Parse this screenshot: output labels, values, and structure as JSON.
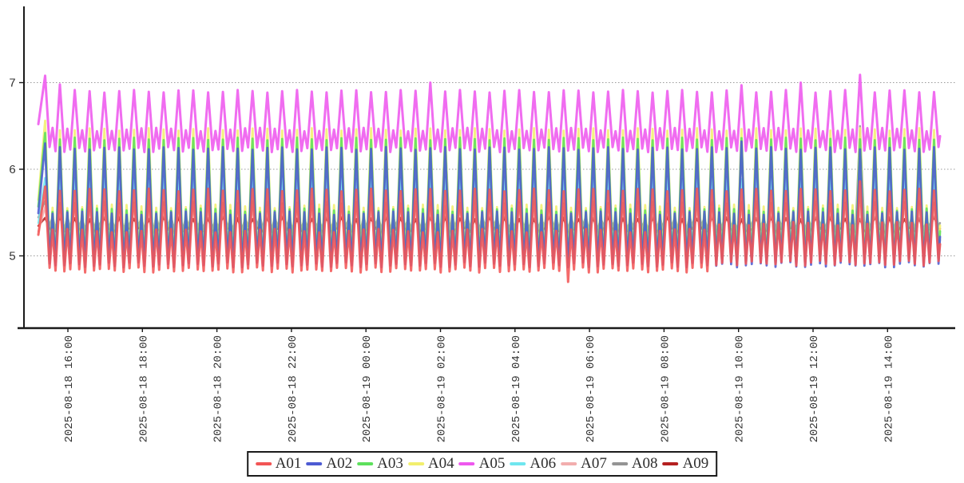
{
  "chart_data": {
    "type": "line",
    "title": "",
    "x_axis": {
      "tick_labels": [
        "2025-08-18 16:00",
        "2025-08-18 18:00",
        "2025-08-18 20:00",
        "2025-08-18 22:00",
        "2025-08-19 00:00",
        "2025-08-19 02:00",
        "2025-08-19 04:00",
        "2025-08-19 06:00",
        "2025-08-19 08:00",
        "2025-08-19 10:00",
        "2025-08-19 12:00",
        "2025-08-19 14:00"
      ],
      "label_rotation_deg": 90,
      "tick_interval_hours": 2
    },
    "y_axis": {
      "tick_labels": [
        "5",
        "6",
        "7"
      ],
      "tick_values": [
        5,
        6,
        7
      ],
      "range_shown": [
        4.2,
        7.85
      ]
    },
    "grid": {
      "horizontal": true,
      "vertical": false,
      "style": "dotted",
      "color": "#999999"
    },
    "legend": {
      "position": "bottom-center",
      "border_color": "#1a1a1a"
    },
    "series": [
      {
        "name": "A09",
        "color": "#b42020",
        "low": 5.27,
        "high": 5.44,
        "bump": 0.5,
        "width": 2.4
      },
      {
        "name": "A08",
        "color": "#949494",
        "low": 5.3,
        "high": 5.62,
        "bump": 0.45,
        "width": 2.4
      },
      {
        "name": "A07",
        "color": "#f2aeae",
        "low": 5.04,
        "high": 5.58,
        "bump": 0.4,
        "width": 2.4
      },
      {
        "name": "A06",
        "color": "#6fe6ef",
        "low": 4.95,
        "high": 5.9,
        "bump": 0.45,
        "width": 2.4
      },
      {
        "name": "A04",
        "color": "#f2ef6e",
        "low": 4.98,
        "high": 6.46,
        "bump": 0.4,
        "width": 2.8
      },
      {
        "name": "A03",
        "color": "#5de05c",
        "low": 4.93,
        "high": 6.35,
        "bump": 0.42,
        "width": 2.8
      },
      {
        "name": "A02",
        "color": "#4d5bd3",
        "low": 4.88,
        "high": 6.24,
        "bump": 0.45,
        "width": 2.8
      },
      {
        "name": "A01",
        "color": "#f25555",
        "low": 4.82,
        "high": 5.76,
        "bump": 0.5,
        "width": 3.0
      },
      {
        "name": "A05",
        "color": "#ee58ee",
        "low": 6.21,
        "high": 6.9,
        "bump": 0.36,
        "width": 3.0
      }
    ],
    "legend_order": [
      "A01",
      "A02",
      "A03",
      "A04",
      "A05",
      "A06",
      "A07",
      "A08",
      "A09"
    ],
    "waveform": {
      "description": "all series oscillate in phase, ~24-minute period, sharp peaks with a small mid-bump between twin troughs",
      "cycles": 61,
      "phase_shape": [
        [
          0,
          1.0
        ],
        [
          0.3,
          0.0
        ],
        [
          0.5,
          "bump"
        ],
        [
          0.7,
          0.0
        ]
      ],
      "time_span": "2025-08-18 ~15:10 to 2025-08-19 ~15:30"
    },
    "anomalies": {
      "peak_overrides": {
        "A05": {
          "0": 7.08,
          "1": 6.98,
          "26": 7.0,
          "47": 6.97,
          "51": 7.0,
          "55": 7.09
        },
        "A08": {
          "27": 6.35,
          "55": 6.5
        },
        "A01": {
          "0": 5.8,
          "55": 5.86
        },
        "A02": {
          "0": 6.3,
          "47": 6.32
        },
        "A03": {
          "0": 6.42
        },
        "A04": {
          "0": 6.56
        }
      },
      "trough_events": {
        "A01": {
          "deep_cycle": 35,
          "deep_value": 4.7,
          "shift_from_cycle": 45,
          "shift_to": 4.9
        }
      }
    }
  }
}
